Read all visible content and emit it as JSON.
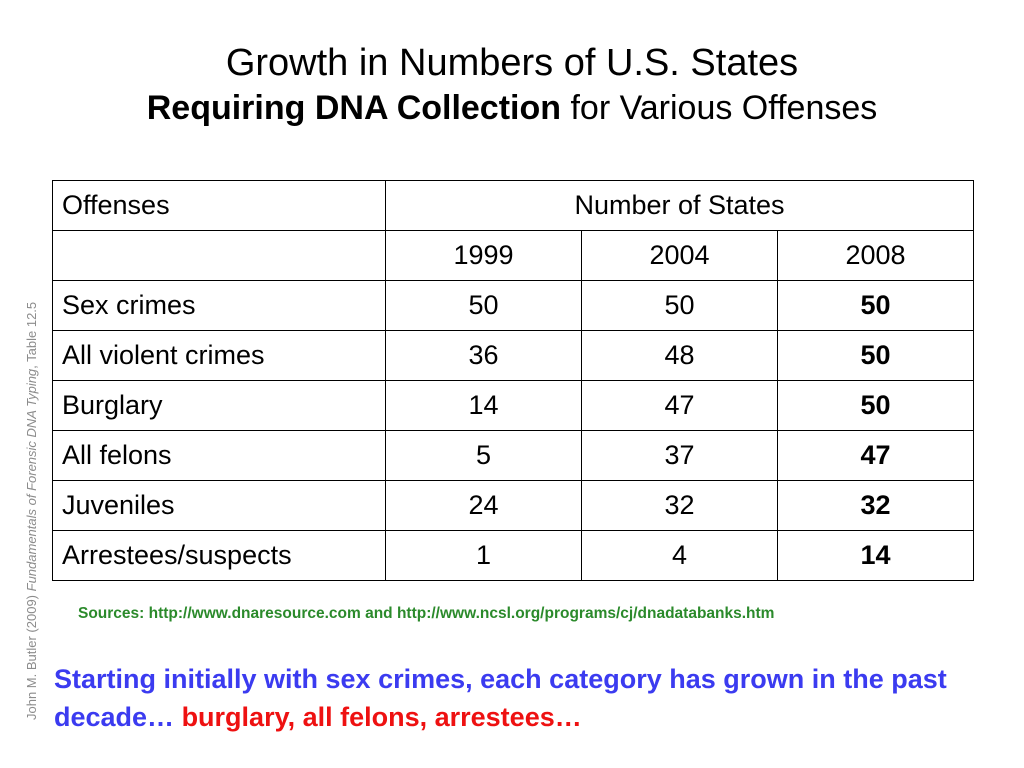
{
  "title": {
    "line1": "Growth in Numbers of U.S. States",
    "line2_bold": "Requiring DNA Collection",
    "line2_rest": " for Various Offenses"
  },
  "credit": {
    "author": "John M. Butler (2009) ",
    "book": "Fundamentals of Forensic DNA Typing",
    "table": ", Table 12.5"
  },
  "table": {
    "header_offenses": "Offenses",
    "header_states": "Number of States",
    "years": [
      "1999",
      "2004",
      "2008"
    ],
    "rows": [
      {
        "offense": "Sex crimes",
        "values": [
          "50",
          "50",
          "50"
        ]
      },
      {
        "offense": "All violent crimes",
        "values": [
          "36",
          "48",
          "50"
        ]
      },
      {
        "offense": "Burglary",
        "values": [
          "14",
          "47",
          "50"
        ]
      },
      {
        "offense": "All felons",
        "values": [
          "5",
          "37",
          "47"
        ]
      },
      {
        "offense": "Juveniles",
        "values": [
          "24",
          "32",
          "32"
        ]
      },
      {
        "offense": "Arrestees/suspects",
        "values": [
          "1",
          "4",
          "14"
        ]
      }
    ]
  },
  "sources": "Sources: http://www.dnaresource.com and http://www.ncsl.org/programs/cj/dnadatabanks.htm",
  "note": {
    "blue": "Starting initially with sex crimes, each category has grown in the past decade… ",
    "red": "burglary, all felons, arrestees…"
  },
  "colors": {
    "sources": "#2b8a2b",
    "note_blue": "#3b3bf0",
    "note_red": "#ee1111",
    "credit": "#8c8c8c"
  }
}
